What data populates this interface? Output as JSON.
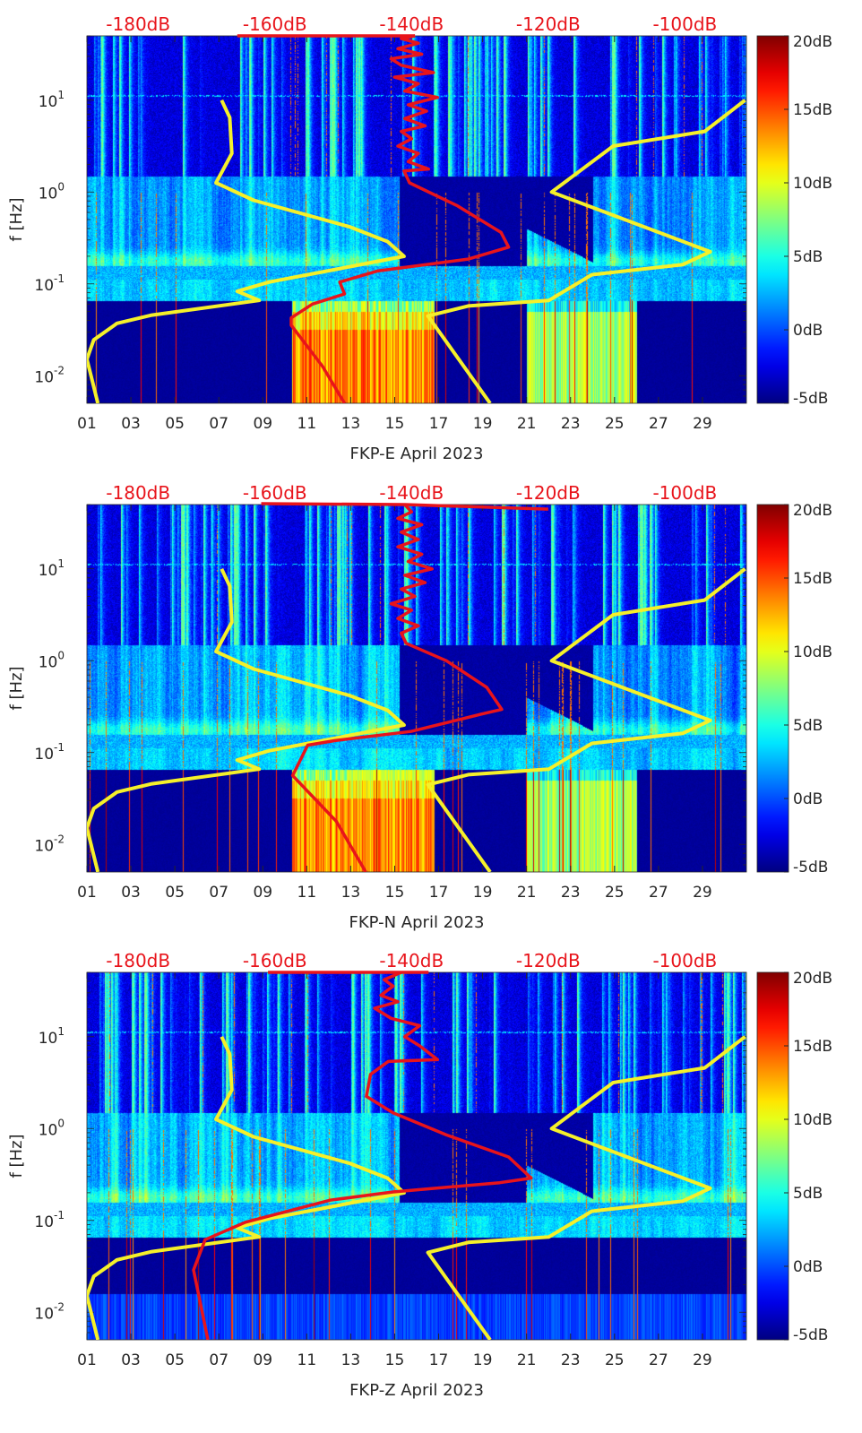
{
  "axes": {
    "x_ticks": [
      "01",
      "03",
      "05",
      "07",
      "09",
      "11",
      "13",
      "15",
      "17",
      "19",
      "21",
      "23",
      "25",
      "27",
      "29"
    ],
    "x_tick_days": [
      1,
      3,
      5,
      7,
      9,
      11,
      13,
      15,
      17,
      19,
      21,
      23,
      25,
      27,
      29
    ],
    "x_range_days": [
      1,
      31
    ],
    "y_scale": "log",
    "y_range_log10_hz": [
      -2.3,
      1.7
    ],
    "y_label": "f [Hz]",
    "y_ticks": [
      {
        "base": "10",
        "exp": "1",
        "log": 1
      },
      {
        "base": "10",
        "exp": "0",
        "log": 0
      },
      {
        "base": "10",
        "exp": "-1",
        "log": -1
      },
      {
        "base": "10",
        "exp": "-2",
        "log": -2
      }
    ],
    "top_ticks": [
      {
        "label": "-180dB",
        "db": -180
      },
      {
        "label": "-160dB",
        "db": -160
      },
      {
        "label": "-140dB",
        "db": -140
      },
      {
        "label": "-120dB",
        "db": -120
      },
      {
        "label": "-100dB",
        "db": -100
      }
    ],
    "top_range_db": [
      -187.5,
      -91
    ],
    "colorbar_ticks": [
      {
        "label": "20dB",
        "db": 20
      },
      {
        "label": "15dB",
        "db": 15
      },
      {
        "label": "10dB",
        "db": 10
      },
      {
        "label": "5dB",
        "db": 5
      },
      {
        "label": "0dB",
        "db": 0
      },
      {
        "label": "-5dB",
        "db": -5
      }
    ],
    "colorbar_range_db": [
      -5,
      20
    ],
    "colormap": "jet",
    "red_color": "#e8141b",
    "yellow_color": "#f5f02a"
  },
  "chart_data": [
    {
      "type": "heatmap",
      "title": "FKP-E April 2023",
      "yellow_low_model": [
        [
          -185.9,
          -2.3
        ],
        [
          -187.5,
          -1.82
        ],
        [
          -186.5,
          -1.61
        ],
        [
          -183.1,
          -1.43
        ],
        [
          -178,
          -1.34
        ],
        [
          -162.3,
          -1.18
        ],
        [
          -165.5,
          -1.08
        ],
        [
          -160.8,
          -0.98
        ],
        [
          -141.1,
          -0.7
        ],
        [
          -143.5,
          -0.54
        ],
        [
          -149,
          -0.38
        ],
        [
          -163.1,
          -0.09
        ],
        [
          -168.6,
          0.1
        ],
        [
          -166.3,
          0.42
        ],
        [
          -166.6,
          0.81
        ],
        [
          -167.8,
          1.0
        ]
      ],
      "yellow_high_model": [
        [
          -128.5,
          -2.3
        ],
        [
          -137.6,
          -1.35
        ],
        [
          -131.7,
          -1.24
        ],
        [
          -119.9,
          -1.18
        ],
        [
          -113.6,
          -0.9
        ],
        [
          -100.3,
          -0.79
        ],
        [
          -96.3,
          -0.65
        ],
        [
          -119.5,
          0.0
        ],
        [
          -110.5,
          0.5
        ],
        [
          -97.1,
          0.66
        ],
        [
          -91.2,
          1.0
        ]
      ],
      "red_curve": [
        [
          -149.8,
          -2.3
        ],
        [
          -153,
          -1.9
        ],
        [
          -157.6,
          -1.45
        ],
        [
          -157.6,
          -1.37
        ],
        [
          -154.5,
          -1.22
        ],
        [
          -149.8,
          -1.11
        ],
        [
          -150.5,
          -0.98
        ],
        [
          -145,
          -0.86
        ],
        [
          -131.7,
          -0.73
        ],
        [
          -125.8,
          -0.6
        ],
        [
          -126.9,
          -0.44
        ],
        [
          -133.3,
          -0.15
        ],
        [
          -140.3,
          0.1
        ],
        [
          -141.1,
          0.23
        ],
        [
          -137.5,
          0.25
        ],
        [
          -140.5,
          0.33
        ],
        [
          -139,
          0.42
        ],
        [
          -142,
          0.5
        ],
        [
          -140,
          0.58
        ],
        [
          -141.5,
          0.66
        ],
        [
          -138,
          0.72
        ],
        [
          -141,
          0.8
        ],
        [
          -137.8,
          0.88
        ],
        [
          -140.5,
          0.95
        ],
        [
          -136.2,
          1.03
        ],
        [
          -141,
          1.1
        ],
        [
          -139,
          1.18
        ],
        [
          -142.5,
          1.25
        ],
        [
          -136.8,
          1.3
        ],
        [
          -141.5,
          1.38
        ],
        [
          -143,
          1.45
        ],
        [
          -138.5,
          1.5
        ],
        [
          -142,
          1.56
        ],
        [
          -139,
          1.62
        ],
        [
          -141.5,
          1.67
        ],
        [
          -139.5,
          1.7
        ]
      ],
      "red_top_segment": [
        [
          -165.5,
          1.7
        ],
        [
          -139.5,
          1.7
        ]
      ]
    },
    {
      "type": "heatmap",
      "title": "FKP-N April 2023",
      "yellow_low_model": [
        [
          -185.9,
          -2.3
        ],
        [
          -187.5,
          -1.82
        ],
        [
          -186.5,
          -1.61
        ],
        [
          -183.1,
          -1.43
        ],
        [
          -178,
          -1.34
        ],
        [
          -162.3,
          -1.18
        ],
        [
          -165.5,
          -1.08
        ],
        [
          -160.8,
          -0.98
        ],
        [
          -141.1,
          -0.7
        ],
        [
          -143.5,
          -0.54
        ],
        [
          -149,
          -0.38
        ],
        [
          -163.1,
          -0.09
        ],
        [
          -168.6,
          0.1
        ],
        [
          -166.3,
          0.42
        ],
        [
          -166.6,
          0.81
        ],
        [
          -167.8,
          1.0
        ]
      ],
      "yellow_high_model": [
        [
          -128.5,
          -2.3
        ],
        [
          -137.6,
          -1.35
        ],
        [
          -131.7,
          -1.24
        ],
        [
          -119.9,
          -1.18
        ],
        [
          -113.6,
          -0.9
        ],
        [
          -100.3,
          -0.79
        ],
        [
          -96.3,
          -0.65
        ],
        [
          -119.5,
          0.0
        ],
        [
          -110.5,
          0.5
        ],
        [
          -97.1,
          0.66
        ],
        [
          -91.2,
          1.0
        ]
      ],
      "red_curve": [
        [
          -146.7,
          -2.3
        ],
        [
          -151,
          -1.75
        ],
        [
          -157.4,
          -1.25
        ],
        [
          -155.2,
          -0.92
        ],
        [
          -151.2,
          -0.87
        ],
        [
          -140.1,
          -0.77
        ],
        [
          -129.7,
          -0.58
        ],
        [
          -126.8,
          -0.53
        ],
        [
          -129,
          -0.29
        ],
        [
          -134.9,
          0
        ],
        [
          -140.8,
          0.19
        ],
        [
          -141.5,
          0.3
        ],
        [
          -139,
          0.38
        ],
        [
          -142,
          0.46
        ],
        [
          -140,
          0.55
        ],
        [
          -143,
          0.62
        ],
        [
          -139.5,
          0.7
        ],
        [
          -141.5,
          0.78
        ],
        [
          -138,
          0.85
        ],
        [
          -141,
          0.93
        ],
        [
          -137,
          1.0
        ],
        [
          -140.5,
          1.08
        ],
        [
          -138.5,
          1.16
        ],
        [
          -142,
          1.24
        ],
        [
          -139,
          1.32
        ],
        [
          -141.5,
          1.4
        ],
        [
          -138.5,
          1.48
        ],
        [
          -142,
          1.55
        ],
        [
          -140,
          1.62
        ],
        [
          -141,
          1.7
        ]
      ],
      "red_top_segment": [
        [
          -162,
          1.71
        ],
        [
          -141,
          1.7
        ],
        [
          -120,
          1.65
        ]
      ]
    },
    {
      "type": "heatmap",
      "title": "FKP-Z April 2023",
      "yellow_low_model": [
        [
          -185.9,
          -2.3
        ],
        [
          -187.5,
          -1.82
        ],
        [
          -186.5,
          -1.61
        ],
        [
          -183.1,
          -1.43
        ],
        [
          -178,
          -1.34
        ],
        [
          -162.3,
          -1.18
        ],
        [
          -165.5,
          -1.08
        ],
        [
          -160.8,
          -0.98
        ],
        [
          -141.1,
          -0.7
        ],
        [
          -143.5,
          -0.54
        ],
        [
          -149,
          -0.38
        ],
        [
          -163.1,
          -0.09
        ],
        [
          -168.6,
          0.1
        ],
        [
          -166.3,
          0.42
        ],
        [
          -166.6,
          0.81
        ],
        [
          -167.8,
          1.0
        ]
      ],
      "yellow_high_model": [
        [
          -128.5,
          -2.3
        ],
        [
          -137.6,
          -1.35
        ],
        [
          -131.7,
          -1.24
        ],
        [
          -119.9,
          -1.18
        ],
        [
          -113.6,
          -0.9
        ],
        [
          -100.3,
          -0.79
        ],
        [
          -96.3,
          -0.65
        ],
        [
          -119.5,
          0.0
        ],
        [
          -110.5,
          0.5
        ],
        [
          -97.1,
          0.66
        ],
        [
          -91.2,
          1.0
        ]
      ],
      "red_curve": [
        [
          -169.8,
          -2.3
        ],
        [
          -171.9,
          -1.54
        ],
        [
          -170.2,
          -1.21
        ],
        [
          -164.3,
          -1.02
        ],
        [
          -151.9,
          -0.78
        ],
        [
          -142.7,
          -0.69
        ],
        [
          -127.1,
          -0.59
        ],
        [
          -122.5,
          -0.54
        ],
        [
          -125.8,
          -0.31
        ],
        [
          -134.9,
          -0.07
        ],
        [
          -142.7,
          0.17
        ],
        [
          -146.6,
          0.35
        ],
        [
          -146,
          0.59
        ],
        [
          -143.4,
          0.73
        ],
        [
          -136.2,
          0.75
        ],
        [
          -138.8,
          0.9
        ],
        [
          -141,
          1.0
        ],
        [
          -138.8,
          1.12
        ],
        [
          -143,
          1.2
        ],
        [
          -145.4,
          1.31
        ],
        [
          -142,
          1.38
        ],
        [
          -144.5,
          1.45
        ],
        [
          -142.7,
          1.55
        ],
        [
          -144,
          1.62
        ],
        [
          -141.5,
          1.7
        ]
      ],
      "red_top_segment": [
        [
          -161,
          1.7
        ],
        [
          -137.5,
          1.7
        ]
      ]
    }
  ]
}
